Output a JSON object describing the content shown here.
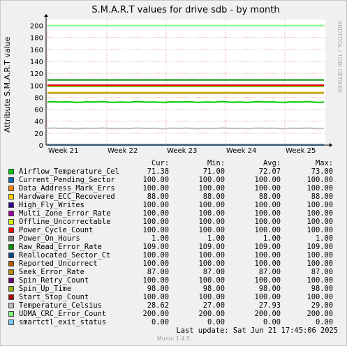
{
  "chart_data": {
    "type": "line",
    "title": "S.M.A.R.T values for drive sdb - by month",
    "ylabel": "Attribute S.M.A.R.T value",
    "xlabel": "",
    "ylim": [
      0,
      210
    ],
    "yticks": [
      0,
      20,
      40,
      60,
      80,
      100,
      120,
      140,
      160,
      180,
      200
    ],
    "x_ticks": [
      "Week 21",
      "Week 22",
      "Week 23",
      "Week 24",
      "Week 25"
    ],
    "grid": true,
    "series": [
      {
        "name": "Airflow_Temperature_Cel",
        "color": "#00cc00",
        "cur": "71.38",
        "min": "71.00",
        "avg": "72.07",
        "max": "73.00",
        "level": 72
      },
      {
        "name": "Current_Pending_Sector",
        "color": "#0066b3",
        "cur": "100.00",
        "min": "100.00",
        "avg": "100.00",
        "max": "100.00",
        "level": 100
      },
      {
        "name": "Data_Address_Mark_Errs",
        "color": "#ff8000",
        "cur": "100.00",
        "min": "100.00",
        "avg": "100.00",
        "max": "100.00",
        "level": 100
      },
      {
        "name": "Hardware_ECC_Recovered",
        "color": "#ffcc00",
        "cur": "88.00",
        "min": "88.00",
        "avg": "88.00",
        "max": "88.00",
        "level": 88
      },
      {
        "name": "High_Fly_Writes",
        "color": "#330099",
        "cur": "100.00",
        "min": "100.00",
        "avg": "100.00",
        "max": "100.00",
        "level": 100
      },
      {
        "name": "Multi_Zone_Error_Rate",
        "color": "#990099",
        "cur": "100.00",
        "min": "100.00",
        "avg": "100.00",
        "max": "100.00",
        "level": 100
      },
      {
        "name": "Offline_Uncorrectable",
        "color": "#ccff00",
        "cur": "100.00",
        "min": "100.00",
        "avg": "100.00",
        "max": "100.00",
        "level": 100
      },
      {
        "name": "Power_Cycle_Count",
        "color": "#ff0000",
        "cur": "100.00",
        "min": "100.00",
        "avg": "100.00",
        "max": "100.00",
        "level": 100
      },
      {
        "name": "Power_On_Hours",
        "color": "#808080",
        "cur": "1.00",
        "min": "1.00",
        "avg": "1.00",
        "max": "1.00",
        "level": 1
      },
      {
        "name": "Raw_Read_Error_Rate",
        "color": "#008f00",
        "cur": "109.00",
        "min": "109.00",
        "avg": "109.00",
        "max": "109.00",
        "level": 109
      },
      {
        "name": "Reallocated_Sector_Ct",
        "color": "#00487d",
        "cur": "100.00",
        "min": "100.00",
        "avg": "100.00",
        "max": "100.00",
        "level": 100
      },
      {
        "name": "Reported_Uncorrect",
        "color": "#b35a00",
        "cur": "100.00",
        "min": "100.00",
        "avg": "100.00",
        "max": "100.00",
        "level": 100
      },
      {
        "name": "Seek_Error_Rate",
        "color": "#b38f00",
        "cur": "87.00",
        "min": "87.00",
        "avg": "87.00",
        "max": "87.00",
        "level": 87
      },
      {
        "name": "Spin_Retry_Count",
        "color": "#6b006b",
        "cur": "100.00",
        "min": "100.00",
        "avg": "100.00",
        "max": "100.00",
        "level": 100
      },
      {
        "name": "Spin_Up_Time",
        "color": "#8fb300",
        "cur": "98.00",
        "min": "98.00",
        "avg": "98.00",
        "max": "98.00",
        "level": 98
      },
      {
        "name": "Start_Stop_Count",
        "color": "#b30000",
        "cur": "100.00",
        "min": "100.00",
        "avg": "100.00",
        "max": "100.00",
        "level": 100
      },
      {
        "name": "Temperature_Celsius",
        "color": "#bebebe",
        "cur": "28.62",
        "min": "27.00",
        "avg": "27.93",
        "max": "29.00",
        "level": 28
      },
      {
        "name": "UDMA_CRC_Error_Count",
        "color": "#80ff80",
        "cur": "200.00",
        "min": "200.00",
        "avg": "200.00",
        "max": "200.00",
        "level": 200
      },
      {
        "name": "smartctl_exit_status",
        "color": "#80c9ff",
        "cur": "0.00",
        "min": "0.00",
        "avg": "0.00",
        "max": "0.00",
        "level": 0
      }
    ]
  },
  "legend_headers": {
    "cur": "Cur:",
    "min": "Min:",
    "avg": "Avg:",
    "max": "Max:"
  },
  "last_update": "Last update:  Sat Jun 21 17:45:06 2025",
  "side_label": "RRDTOOL / TOBI OETIKER",
  "munin_version": "Munin 1.4.5"
}
